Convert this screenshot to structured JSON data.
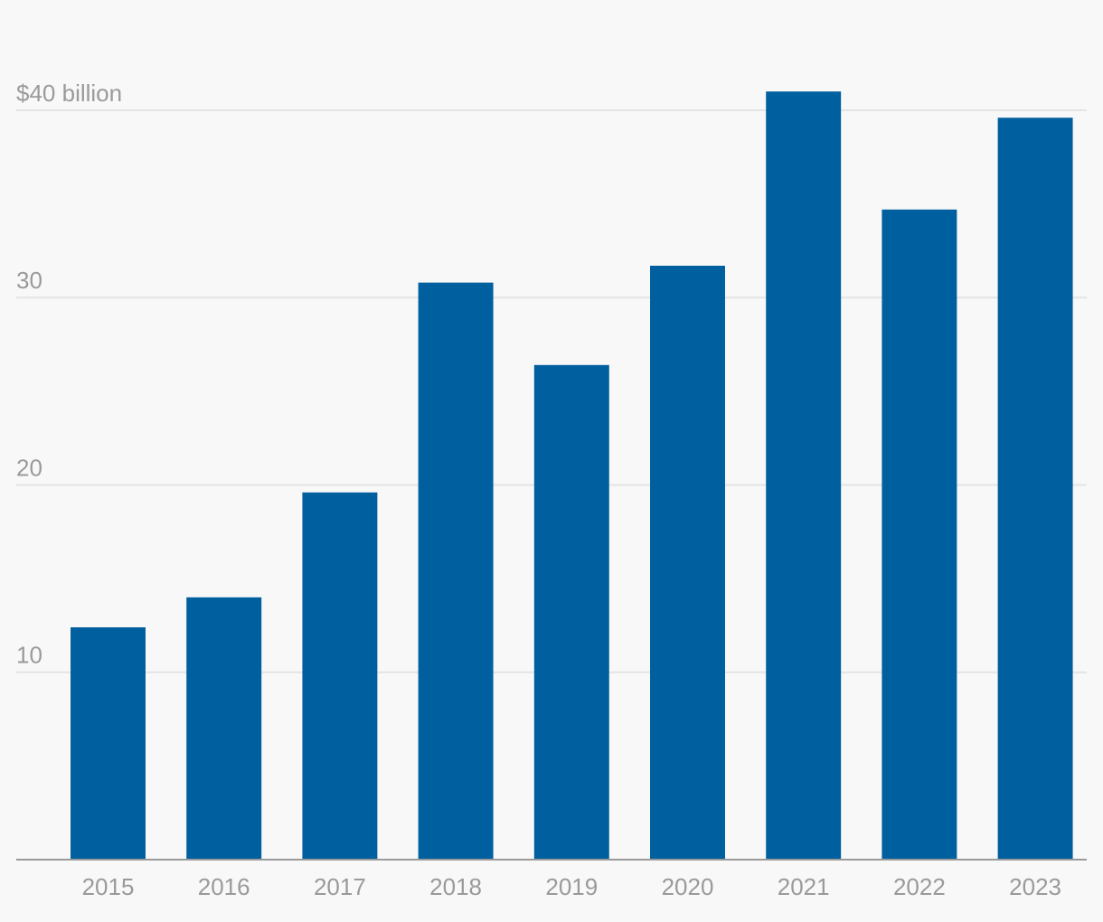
{
  "chart_data": {
    "type": "bar",
    "categories": [
      "2015",
      "2016",
      "2017",
      "2018",
      "2019",
      "2020",
      "2021",
      "2022",
      "2023"
    ],
    "values": [
      12.4,
      14.0,
      19.6,
      30.8,
      26.4,
      31.7,
      41.0,
      34.7,
      39.6
    ],
    "color": "#005f9e",
    "ylim": [
      0,
      42
    ],
    "yticks": [
      10,
      20,
      30,
      {
        "value": 40,
        "label": "$40 billion"
      }
    ],
    "grid": true
  }
}
